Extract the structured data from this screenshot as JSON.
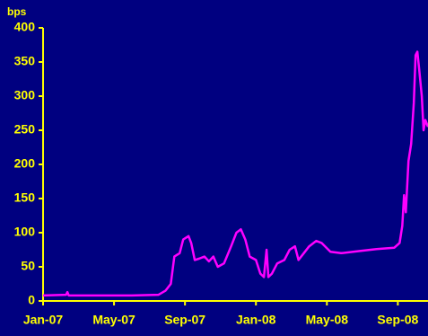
{
  "chart_data": {
    "type": "line",
    "y_label": "bps",
    "x": [
      0,
      1.3,
      1.37,
      1.45,
      3,
      5,
      6.5,
      6.9,
      7.2,
      7.4,
      7.7,
      7.9,
      8.2,
      8.35,
      8.55,
      8.8,
      9.1,
      9.35,
      9.6,
      9.85,
      10.2,
      10.6,
      10.9,
      11.15,
      11.4,
      11.65,
      12.0,
      12.25,
      12.45,
      12.6,
      12.7,
      12.9,
      13.2,
      13.6,
      13.9,
      14.2,
      14.4,
      14.7,
      15.0,
      15.4,
      15.7,
      16.2,
      16.8,
      17.8,
      18.8,
      19.8,
      20.1,
      20.25,
      20.35,
      20.45,
      20.6,
      20.75,
      20.9,
      21.0,
      21.1,
      21.2,
      21.35,
      21.45,
      21.55,
      21.7
    ],
    "series": [
      {
        "color": "#ff00ff",
        "values": [
          8,
          9,
          13,
          8,
          8,
          8,
          9,
          15,
          25,
          65,
          70,
          90,
          95,
          85,
          60,
          62,
          65,
          58,
          65,
          50,
          55,
          80,
          100,
          105,
          90,
          65,
          60,
          40,
          35,
          75,
          35,
          40,
          55,
          60,
          75,
          80,
          60,
          70,
          80,
          88,
          85,
          72,
          70,
          73,
          76,
          78,
          85,
          110,
          155,
          130,
          205,
          230,
          290,
          360,
          365,
          340,
          300,
          250,
          265,
          255
        ]
      }
    ],
    "xlim": [
      0,
      21.7
    ],
    "xticks": [
      {
        "value": 0,
        "label": "Jan-07"
      },
      {
        "value": 4,
        "label": "May-07"
      },
      {
        "value": 8,
        "label": "Sep-07"
      },
      {
        "value": 12,
        "label": "Jan-08"
      },
      {
        "value": 16,
        "label": "May-08"
      },
      {
        "value": 20,
        "label": "Sep-08"
      }
    ],
    "ylim": [
      0,
      400
    ],
    "yticks": [
      0,
      50,
      100,
      150,
      200,
      250,
      300,
      350,
      400
    ],
    "axis_color": "#ffff00",
    "background": "#000080"
  }
}
